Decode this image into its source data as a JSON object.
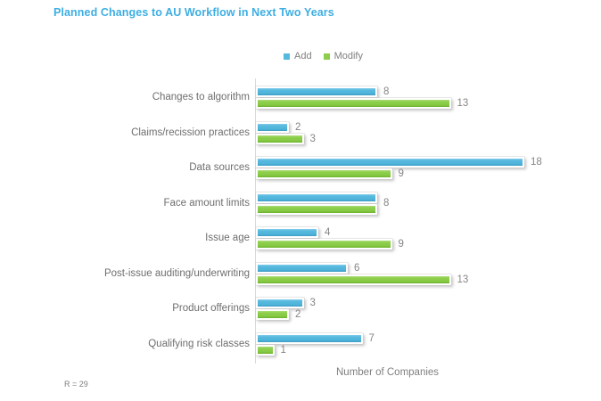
{
  "title": "Planned Changes to AU Workflow in Next Two Years",
  "footnote": "R = 29",
  "colors": {
    "title": "#3daee3",
    "add": "#55b8dd",
    "modify": "#8ccd49",
    "axis_line": "#d9d9d9",
    "label_text": "#858585"
  },
  "chart_data": {
    "type": "bar",
    "orientation": "horizontal",
    "title": "Planned Changes to AU Workflow in Next Two Years",
    "xlabel": "Number of Companies",
    "ylabel": "",
    "xlim": [
      0,
      20
    ],
    "grid": false,
    "legend_position": "top",
    "data_labels": true,
    "categories": [
      "Changes to algorithm",
      "Claims/recission practices",
      "Data sources",
      "Face amount limits",
      "Issue age",
      "Post-issue auditing/underwriting",
      "Product offerings",
      "Qualifying risk classes"
    ],
    "series": [
      {
        "name": "Add",
        "color": "#55b8dd",
        "values": [
          8,
          2,
          18,
          8,
          4,
          6,
          3,
          7
        ]
      },
      {
        "name": "Modify",
        "color": "#8ccd49",
        "values": [
          13,
          3,
          9,
          8,
          9,
          13,
          2,
          1
        ]
      }
    ],
    "merged_label_rows": [
      3
    ]
  }
}
